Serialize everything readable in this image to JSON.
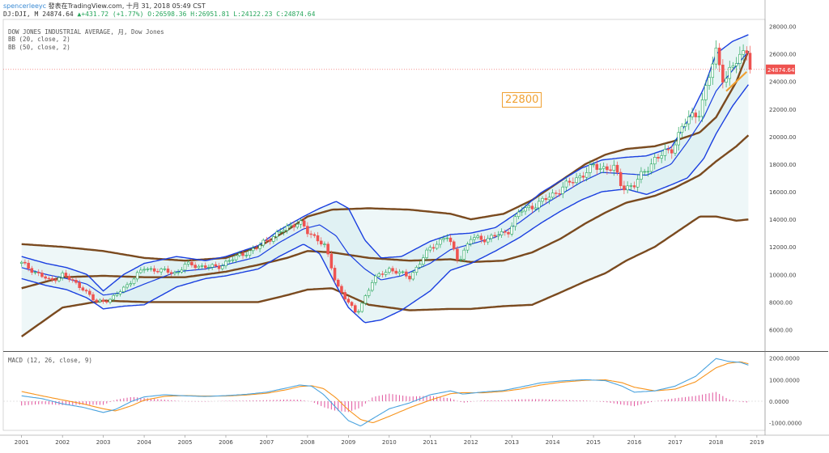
{
  "header": {
    "user": "spencerleeyc",
    "publish": "發表在TradingView.com, 十月 31, 2018 05:49 CST",
    "symbol": "DJ:DJI, M",
    "last": "24874.64",
    "change": "▲+431.72 (+1.77%)",
    "ohlc_o": "O:26598.36",
    "ohlc_h": "H:26951.81",
    "ohlc_l": "L:24122.23",
    "ohlc_c": "C:24874.64"
  },
  "indicators": {
    "main": "DOW JONES INDUSTRIAL AVERAGE, 月, Dow Jones",
    "bb1": "BB (20, close, 2)",
    "bb2": "BB (50, close, 2)",
    "macd": "MACD (12, 26, close, 9)"
  },
  "annotation": "22800",
  "price_tag": "24874.64",
  "colors": {
    "bull": "#26a65b",
    "bear": "#ef5350",
    "bb20": "#1a3fe0",
    "bb50": "#7a4a1f",
    "macd": "#4aa3df",
    "signal": "#f7941d",
    "hist": "#e0529c",
    "annot": "#f0a030"
  },
  "chart_data": {
    "type": "candlestick",
    "xlabels": [
      "2001",
      "2002",
      "2003",
      "2004",
      "2005",
      "2006",
      "2007",
      "2008",
      "2009",
      "2010",
      "2011",
      "2012",
      "2013",
      "2014",
      "2015",
      "2016",
      "2017",
      "2018",
      "2019"
    ],
    "price_axis_ticks": [
      6000,
      8000,
      10000,
      12000,
      14000,
      16000,
      18000,
      20000,
      22000,
      24000,
      26000,
      28000
    ],
    "ylim": [
      4500,
      28500
    ],
    "macd_axis_ticks": [
      "2000.0000",
      "1000.0000",
      "0.0000",
      "-1000.0000"
    ],
    "macd_ylim": [
      -1350,
      2250
    ],
    "last_close": 24874.64,
    "close_anchors": [
      [
        2001.0,
        10800
      ],
      [
        2001.7,
        9500
      ],
      [
        2002.0,
        10000
      ],
      [
        2002.5,
        9000
      ],
      [
        2002.8,
        8000
      ],
      [
        2003.2,
        8200
      ],
      [
        2003.6,
        9300
      ],
      [
        2004.0,
        10450
      ],
      [
        2004.8,
        10100
      ],
      [
        2005.0,
        10700
      ],
      [
        2005.8,
        10500
      ],
      [
        2006.0,
        10900
      ],
      [
        2006.8,
        12000
      ],
      [
        2007.0,
        12500
      ],
      [
        2007.8,
        13900
      ],
      [
        2008.0,
        13000
      ],
      [
        2008.4,
        12300
      ],
      [
        2008.7,
        9300
      ],
      [
        2009.0,
        8000
      ],
      [
        2009.2,
        7060
      ],
      [
        2009.6,
        9600
      ],
      [
        2010.0,
        10400
      ],
      [
        2010.5,
        9800
      ],
      [
        2011.0,
        11900
      ],
      [
        2011.4,
        12800
      ],
      [
        2011.7,
        11000
      ],
      [
        2012.0,
        12600
      ],
      [
        2012.4,
        12600
      ],
      [
        2012.9,
        13100
      ],
      [
        2013.2,
        14600
      ],
      [
        2013.7,
        15200
      ],
      [
        2014.0,
        15800
      ],
      [
        2014.6,
        17000
      ],
      [
        2015.0,
        17800
      ],
      [
        2015.5,
        17700
      ],
      [
        2015.7,
        16300
      ],
      [
        2016.0,
        16500
      ],
      [
        2016.5,
        18400
      ],
      [
        2016.9,
        19000
      ],
      [
        2017.2,
        20900
      ],
      [
        2017.6,
        21900
      ],
      [
        2018.0,
        26100
      ],
      [
        2018.2,
        24100
      ],
      [
        2018.5,
        25400
      ],
      [
        2018.75,
        26500
      ],
      [
        2018.83,
        24874.64
      ]
    ],
    "bb20": {
      "upper": [
        [
          2001.0,
          11300
        ],
        [
          2001.6,
          10800
        ],
        [
          2002.1,
          10500
        ],
        [
          2002.6,
          10000
        ],
        [
          2003.0,
          8800
        ],
        [
          2003.5,
          10000
        ],
        [
          2004.0,
          10800
        ],
        [
          2004.8,
          11300
        ],
        [
          2005.5,
          11000
        ],
        [
          2006.0,
          11300
        ],
        [
          2006.8,
          12100
        ],
        [
          2007.3,
          13200
        ],
        [
          2007.9,
          14200
        ],
        [
          2008.3,
          14800
        ],
        [
          2008.7,
          15300
        ],
        [
          2009.0,
          14800
        ],
        [
          2009.4,
          12500
        ],
        [
          2009.8,
          11200
        ],
        [
          2010.3,
          11300
        ],
        [
          2011.0,
          12400
        ],
        [
          2011.5,
          12900
        ],
        [
          2012.0,
          13000
        ],
        [
          2012.6,
          13400
        ],
        [
          2013.2,
          14600
        ],
        [
          2013.7,
          15900
        ],
        [
          2014.2,
          16800
        ],
        [
          2014.7,
          17700
        ],
        [
          2015.2,
          18300
        ],
        [
          2015.8,
          18500
        ],
        [
          2016.3,
          18600
        ],
        [
          2016.9,
          19200
        ],
        [
          2017.3,
          21100
        ],
        [
          2017.7,
          23500
        ],
        [
          2018.0,
          26000
        ],
        [
          2018.4,
          26900
        ],
        [
          2018.8,
          27400
        ]
      ],
      "basis": [
        [
          2001.0,
          10500
        ],
        [
          2001.6,
          10000
        ],
        [
          2002.1,
          9700
        ],
        [
          2002.6,
          9300
        ],
        [
          2003.0,
          8500
        ],
        [
          2003.5,
          8700
        ],
        [
          2004.0,
          9300
        ],
        [
          2004.8,
          10200
        ],
        [
          2005.5,
          10400
        ],
        [
          2006.0,
          10700
        ],
        [
          2006.8,
          11300
        ],
        [
          2007.3,
          12300
        ],
        [
          2007.9,
          13300
        ],
        [
          2008.3,
          13600
        ],
        [
          2008.7,
          12800
        ],
        [
          2009.0,
          11500
        ],
        [
          2009.4,
          10400
        ],
        [
          2009.8,
          9600
        ],
        [
          2010.3,
          9900
        ],
        [
          2011.0,
          10800
        ],
        [
          2011.5,
          11800
        ],
        [
          2012.0,
          12200
        ],
        [
          2012.6,
          12700
        ],
        [
          2013.2,
          13800
        ],
        [
          2013.7,
          14900
        ],
        [
          2014.2,
          15800
        ],
        [
          2014.7,
          16700
        ],
        [
          2015.2,
          17400
        ],
        [
          2015.8,
          17300
        ],
        [
          2016.3,
          17200
        ],
        [
          2016.9,
          18000
        ],
        [
          2017.3,
          19600
        ],
        [
          2017.7,
          21400
        ],
        [
          2018.0,
          23300
        ],
        [
          2018.4,
          24800
        ],
        [
          2018.8,
          26200
        ]
      ],
      "lower": [
        [
          2001.0,
          9700
        ],
        [
          2001.6,
          9200
        ],
        [
          2002.1,
          8900
        ],
        [
          2002.6,
          8300
        ],
        [
          2003.0,
          7500
        ],
        [
          2003.5,
          7700
        ],
        [
          2004.0,
          7800
        ],
        [
          2004.8,
          9100
        ],
        [
          2005.5,
          9700
        ],
        [
          2006.0,
          9900
        ],
        [
          2006.8,
          10400
        ],
        [
          2007.3,
          11300
        ],
        [
          2007.9,
          12200
        ],
        [
          2008.3,
          11500
        ],
        [
          2008.7,
          9200
        ],
        [
          2009.0,
          7600
        ],
        [
          2009.4,
          6500
        ],
        [
          2009.8,
          6700
        ],
        [
          2010.3,
          7400
        ],
        [
          2011.0,
          8800
        ],
        [
          2011.5,
          10300
        ],
        [
          2012.0,
          10800
        ],
        [
          2012.6,
          11700
        ],
        [
          2013.2,
          12700
        ],
        [
          2013.7,
          13700
        ],
        [
          2014.2,
          14600
        ],
        [
          2014.7,
          15400
        ],
        [
          2015.2,
          16000
        ],
        [
          2015.8,
          16200
        ],
        [
          2016.3,
          15800
        ],
        [
          2016.9,
          16500
        ],
        [
          2017.3,
          17000
        ],
        [
          2017.7,
          18400
        ],
        [
          2018.0,
          20200
        ],
        [
          2018.4,
          22200
        ],
        [
          2018.8,
          23800
        ]
      ]
    },
    "bb50": {
      "upper": [
        [
          2001.0,
          12200
        ],
        [
          2002.0,
          12000
        ],
        [
          2003.0,
          11700
        ],
        [
          2004.0,
          11200
        ],
        [
          2005.0,
          11000
        ],
        [
          2006.0,
          11200
        ],
        [
          2006.8,
          12000
        ],
        [
          2007.5,
          13200
        ],
        [
          2008.0,
          14200
        ],
        [
          2008.6,
          14700
        ],
        [
          2009.5,
          14800
        ],
        [
          2010.5,
          14700
        ],
        [
          2011.5,
          14400
        ],
        [
          2012.0,
          14000
        ],
        [
          2012.8,
          14400
        ],
        [
          2013.5,
          15400
        ],
        [
          2014.2,
          16800
        ],
        [
          2014.8,
          18000
        ],
        [
          2015.3,
          18700
        ],
        [
          2015.8,
          19100
        ],
        [
          2016.5,
          19300
        ],
        [
          2017.0,
          19700
        ],
        [
          2017.6,
          20300
        ],
        [
          2018.0,
          21400
        ],
        [
          2018.5,
          24000
        ],
        [
          2018.83,
          26500
        ]
      ],
      "basis": [
        [
          2001.0,
          9000
        ],
        [
          2002.0,
          9800
        ],
        [
          2003.0,
          9900
        ],
        [
          2004.0,
          9800
        ],
        [
          2005.0,
          9800
        ],
        [
          2006.0,
          10200
        ],
        [
          2006.8,
          10700
        ],
        [
          2007.5,
          11200
        ],
        [
          2008.0,
          11700
        ],
        [
          2008.6,
          11600
        ],
        [
          2009.5,
          11200
        ],
        [
          2010.5,
          11000
        ],
        [
          2011.5,
          11100
        ],
        [
          2012.0,
          10900
        ],
        [
          2012.8,
          11000
        ],
        [
          2013.5,
          11600
        ],
        [
          2014.2,
          12600
        ],
        [
          2014.8,
          13700
        ],
        [
          2015.3,
          14500
        ],
        [
          2015.8,
          15200
        ],
        [
          2016.5,
          15700
        ],
        [
          2017.0,
          16300
        ],
        [
          2017.6,
          17200
        ],
        [
          2018.0,
          18200
        ],
        [
          2018.5,
          19300
        ],
        [
          2018.83,
          20200
        ]
      ],
      "lower": [
        [
          2001.0,
          5500
        ],
        [
          2002.0,
          7600
        ],
        [
          2003.0,
          8100
        ],
        [
          2004.0,
          8000
        ],
        [
          2005.0,
          8000
        ],
        [
          2006.0,
          8000
        ],
        [
          2006.8,
          8000
        ],
        [
          2007.5,
          8500
        ],
        [
          2008.0,
          8900
        ],
        [
          2008.6,
          9000
        ],
        [
          2009.5,
          7800
        ],
        [
          2010.5,
          7400
        ],
        [
          2011.5,
          7500
        ],
        [
          2012.0,
          7500
        ],
        [
          2012.8,
          7700
        ],
        [
          2013.5,
          7800
        ],
        [
          2014.2,
          8700
        ],
        [
          2014.8,
          9500
        ],
        [
          2015.3,
          10100
        ],
        [
          2015.8,
          11000
        ],
        [
          2016.5,
          12000
        ],
        [
          2017.0,
          13000
        ],
        [
          2017.6,
          14200
        ],
        [
          2018.0,
          14200
        ],
        [
          2018.5,
          13900
        ],
        [
          2018.83,
          14000
        ]
      ]
    },
    "trendline": [
      [
        2018.25,
        23300
      ],
      [
        2018.75,
        24700
      ]
    ],
    "macd_line": [
      [
        2001.0,
        250
      ],
      [
        2001.5,
        120
      ],
      [
        2002.0,
        -120
      ],
      [
        2002.5,
        -280
      ],
      [
        2003.0,
        -520
      ],
      [
        2003.3,
        -380
      ],
      [
        2003.7,
        0
      ],
      [
        2004.0,
        200
      ],
      [
        2004.5,
        300
      ],
      [
        2005.0,
        250
      ],
      [
        2005.5,
        220
      ],
      [
        2006.0,
        260
      ],
      [
        2006.5,
        320
      ],
      [
        2007.0,
        420
      ],
      [
        2007.5,
        620
      ],
      [
        2007.8,
        750
      ],
      [
        2008.1,
        700
      ],
      [
        2008.4,
        300
      ],
      [
        2008.7,
        -300
      ],
      [
        2009.0,
        -900
      ],
      [
        2009.3,
        -1150
      ],
      [
        2009.6,
        -800
      ],
      [
        2010.0,
        -350
      ],
      [
        2010.5,
        -80
      ],
      [
        2011.0,
        300
      ],
      [
        2011.5,
        480
      ],
      [
        2011.8,
        330
      ],
      [
        2012.3,
        430
      ],
      [
        2012.8,
        500
      ],
      [
        2013.2,
        650
      ],
      [
        2013.7,
        850
      ],
      [
        2014.2,
        940
      ],
      [
        2014.8,
        1000
      ],
      [
        2015.3,
        950
      ],
      [
        2015.7,
        700
      ],
      [
        2016.0,
        420
      ],
      [
        2016.5,
        480
      ],
      [
        2017.0,
        700
      ],
      [
        2017.5,
        1150
      ],
      [
        2018.0,
        1980
      ],
      [
        2018.3,
        1850
      ],
      [
        2018.6,
        1800
      ],
      [
        2018.83,
        1650
      ]
    ],
    "signal_line": [
      [
        2001.0,
        450
      ],
      [
        2001.5,
        250
      ],
      [
        2002.0,
        60
      ],
      [
        2002.5,
        -120
      ],
      [
        2003.0,
        -350
      ],
      [
        2003.3,
        -450
      ],
      [
        2003.7,
        -200
      ],
      [
        2004.0,
        50
      ],
      [
        2004.5,
        230
      ],
      [
        2005.0,
        260
      ],
      [
        2005.5,
        240
      ],
      [
        2006.0,
        240
      ],
      [
        2006.5,
        290
      ],
      [
        2007.0,
        370
      ],
      [
        2007.5,
        540
      ],
      [
        2007.8,
        680
      ],
      [
        2008.1,
        720
      ],
      [
        2008.4,
        580
      ],
      [
        2008.7,
        150
      ],
      [
        2009.0,
        -400
      ],
      [
        2009.3,
        -850
      ],
      [
        2009.6,
        -1000
      ],
      [
        2010.0,
        -700
      ],
      [
        2010.5,
        -300
      ],
      [
        2011.0,
        50
      ],
      [
        2011.5,
        350
      ],
      [
        2011.8,
        400
      ],
      [
        2012.3,
        390
      ],
      [
        2012.8,
        460
      ],
      [
        2013.2,
        560
      ],
      [
        2013.7,
        750
      ],
      [
        2014.2,
        880
      ],
      [
        2014.8,
        970
      ],
      [
        2015.3,
        990
      ],
      [
        2015.7,
        860
      ],
      [
        2016.0,
        650
      ],
      [
        2016.5,
        480
      ],
      [
        2017.0,
        560
      ],
      [
        2017.5,
        900
      ],
      [
        2018.0,
        1550
      ],
      [
        2018.3,
        1760
      ],
      [
        2018.6,
        1830
      ],
      [
        2018.83,
        1720
      ]
    ]
  }
}
